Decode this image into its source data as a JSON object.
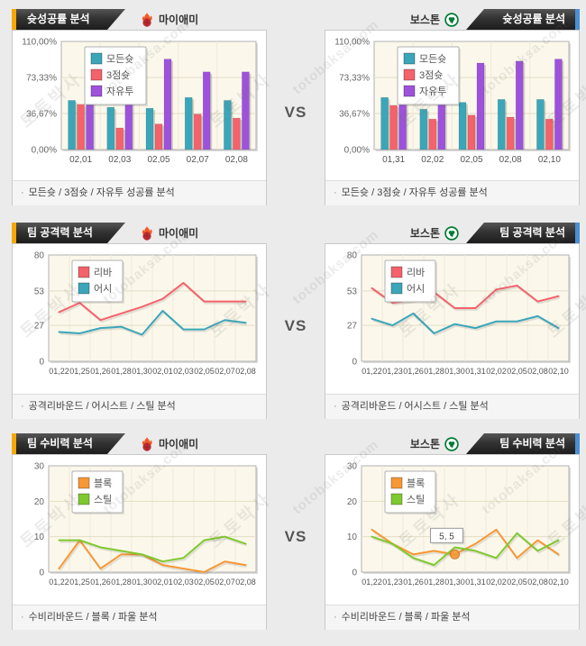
{
  "page": {
    "vs_label": "VS",
    "watermark": {
      "line1": "토토박사",
      "line2": "totobaksa.com"
    }
  },
  "colors": {
    "left_tab_accent": "#F6A800",
    "right_tab_accent": "#4A8FD3",
    "tab_background": "#2B2B2B",
    "page_background": "#EBEBEB",
    "plot_background": "#FBF8EB",
    "series_all_shots": "#3BA6B9",
    "series_3pt": "#F4626C",
    "series_freethrow": "#9E52DC",
    "series_rebound": "#F4626C",
    "series_assist": "#3BA6B9",
    "series_block": "#F79735",
    "series_steal": "#7FC930"
  },
  "panels": [
    {
      "tab": "슛성공률 분석",
      "team": "마이애미",
      "team_icon": "miami-heat-logo",
      "caption": "모든슛 / 3점슛 / 자유투 성공률 분석",
      "chart": 0
    },
    {
      "tab": "슛성공률 분석",
      "team": "보스톤",
      "team_icon": "boston-celtics-logo",
      "caption": "모든슛 / 3점슛 / 자유투 성공률 분석",
      "chart": 1
    },
    {
      "tab": "팀 공격력 분석",
      "team": "마이애미",
      "team_icon": "miami-heat-logo",
      "caption": "공격리바운드 / 어시스트 / 스틸 분석",
      "chart": 2
    },
    {
      "tab": "팀 공격력 분석",
      "team": "보스톤",
      "team_icon": "boston-celtics-logo",
      "caption": "공격리바운드 / 어시스트 / 스틸 분석",
      "chart": 3
    },
    {
      "tab": "팀 수비력 분석",
      "team": "마이애미",
      "team_icon": "miami-heat-logo",
      "caption": "수비리바운드 / 블록 / 파울 분석",
      "chart": 4
    },
    {
      "tab": "팀 수비력 분석",
      "team": "보스톤",
      "team_icon": "boston-celtics-logo",
      "caption": "수비리바운드 / 블록 / 파울 분석",
      "chart": 5
    }
  ],
  "chart_data": [
    {
      "type": "bar",
      "title": "마이애미 슛성공률",
      "xlabel": "",
      "ylabel": "",
      "categories": [
        "02,01",
        "02,03",
        "02,05",
        "02,07",
        "02,08"
      ],
      "series": [
        {
          "name": "모든슛",
          "color": "#3BA6B9",
          "values": [
            50,
            43,
            42,
            53,
            50
          ]
        },
        {
          "name": "3점슛",
          "color": "#F4626C",
          "values": [
            46,
            22,
            26,
            36,
            32
          ]
        },
        {
          "name": "자유투",
          "color": "#9E52DC",
          "values": [
            60,
            78,
            92,
            79,
            79
          ]
        }
      ],
      "ylim": [
        0,
        110
      ],
      "grid": true,
      "legend_position": "top-left",
      "yticks": [
        {
          "v": 0,
          "label": "0,00%"
        },
        {
          "v": 36.67,
          "label": "36,67%"
        },
        {
          "v": 73.33,
          "label": "73,33%"
        },
        {
          "v": 110,
          "label": "110,00%"
        }
      ]
    },
    {
      "type": "bar",
      "title": "보스톤 슛성공률",
      "xlabel": "",
      "ylabel": "",
      "categories": [
        "01,31",
        "02,02",
        "02,05",
        "02,08",
        "02,10"
      ],
      "series": [
        {
          "name": "모든슛",
          "color": "#3BA6B9",
          "values": [
            53,
            41,
            48,
            51,
            51
          ]
        },
        {
          "name": "3점슛",
          "color": "#F4626C",
          "values": [
            45,
            31,
            35,
            33,
            31
          ]
        },
        {
          "name": "자유투",
          "color": "#9E52DC",
          "values": [
            59,
            100,
            88,
            90,
            92
          ]
        }
      ],
      "ylim": [
        0,
        110
      ],
      "grid": true,
      "legend_position": "top-left",
      "yticks": [
        {
          "v": 0,
          "label": "0,00%"
        },
        {
          "v": 36.67,
          "label": "36,67%"
        },
        {
          "v": 73.33,
          "label": "73,33%"
        },
        {
          "v": 110,
          "label": "110,00%"
        }
      ]
    },
    {
      "type": "line",
      "title": "마이애미 팀 공격력",
      "xlabel": "",
      "ylabel": "",
      "categories": [
        "01,22",
        "01,25",
        "01,26",
        "01,28",
        "01,30",
        "02,01",
        "02,03",
        "02,05",
        "02,07",
        "02,08"
      ],
      "series": [
        {
          "name": "리바",
          "color": "#F4626C",
          "values": [
            37,
            44,
            31,
            36,
            41,
            47,
            59,
            45,
            45,
            45
          ]
        },
        {
          "name": "어시",
          "color": "#3BA6B9",
          "values": [
            22,
            21,
            25,
            26,
            20,
            38,
            24,
            24,
            31,
            29
          ]
        }
      ],
      "ylim": [
        0,
        80
      ],
      "grid": true,
      "legend_position": "top-left",
      "yticks": [
        {
          "v": 0,
          "label": "0"
        },
        {
          "v": 27,
          "label": "27"
        },
        {
          "v": 53,
          "label": "53"
        },
        {
          "v": 80,
          "label": "80"
        }
      ]
    },
    {
      "type": "line",
      "title": "보스톤 팀 공격력",
      "xlabel": "",
      "ylabel": "",
      "categories": [
        "01,22",
        "01,23",
        "01,26",
        "01,28",
        "01,30",
        "01,31",
        "02,02",
        "02,05",
        "02,08",
        "02,10"
      ],
      "series": [
        {
          "name": "리바",
          "color": "#F4626C",
          "values": [
            55,
            44,
            46,
            52,
            40,
            40,
            54,
            57,
            45,
            49
          ]
        },
        {
          "name": "어시",
          "color": "#3BA6B9",
          "values": [
            32,
            27,
            36,
            21,
            28,
            25,
            30,
            30,
            34,
            25
          ]
        }
      ],
      "ylim": [
        0,
        80
      ],
      "grid": true,
      "legend_position": "top-left",
      "yticks": [
        {
          "v": 0,
          "label": "0"
        },
        {
          "v": 27,
          "label": "27"
        },
        {
          "v": 53,
          "label": "53"
        },
        {
          "v": 80,
          "label": "80"
        }
      ]
    },
    {
      "type": "line",
      "title": "마이애미 팀 수비력",
      "xlabel": "",
      "ylabel": "",
      "categories": [
        "01,22",
        "01,25",
        "01,26",
        "01,28",
        "01,30",
        "02,01",
        "02,03",
        "02,05",
        "02,07",
        "02,08"
      ],
      "series": [
        {
          "name": "블록",
          "color": "#F79735",
          "values": [
            1,
            9,
            1,
            5,
            5,
            2,
            1,
            0,
            3,
            2
          ]
        },
        {
          "name": "스틸",
          "color": "#7FC930",
          "values": [
            9,
            9,
            7,
            6,
            5,
            3,
            4,
            9,
            10,
            8
          ]
        }
      ],
      "ylim": [
        0,
        30
      ],
      "grid": true,
      "legend_position": "top-left",
      "yticks": [
        {
          "v": 0,
          "label": "0"
        },
        {
          "v": 10,
          "label": "10"
        },
        {
          "v": 20,
          "label": "20"
        },
        {
          "v": 30,
          "label": "30"
        }
      ]
    },
    {
      "type": "line",
      "title": "보스톤 팀 수비력",
      "xlabel": "",
      "ylabel": "",
      "categories": [
        "01,22",
        "01,23",
        "01,26",
        "01,28",
        "01,30",
        "01,31",
        "02,02",
        "02,05",
        "02,08",
        "02,10"
      ],
      "series": [
        {
          "name": "블록",
          "color": "#F79735",
          "values": [
            12,
            8,
            5,
            6,
            5,
            8,
            12,
            4,
            9,
            5
          ]
        },
        {
          "name": "스틸",
          "color": "#7FC930",
          "values": [
            10,
            8,
            4,
            2,
            7,
            6,
            4,
            11,
            6,
            9
          ]
        }
      ],
      "ylim": [
        0,
        30
      ],
      "grid": true,
      "legend_position": "top-left",
      "yticks": [
        {
          "v": 0,
          "label": "0"
        },
        {
          "v": 10,
          "label": "10"
        },
        {
          "v": 20,
          "label": "20"
        },
        {
          "v": 30,
          "label": "30"
        }
      ],
      "marker": {
        "series": "블록",
        "index": 4,
        "value": 5,
        "tooltip": "5, 5"
      }
    }
  ]
}
